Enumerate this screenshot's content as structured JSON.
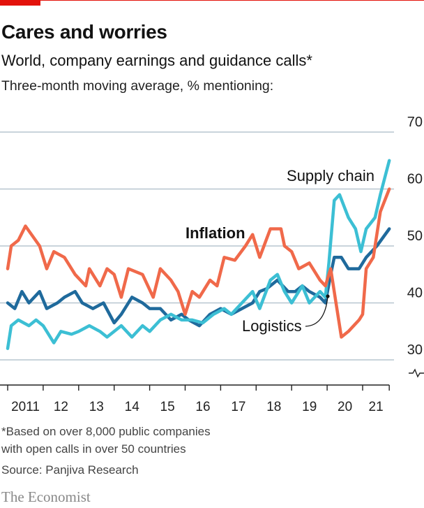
{
  "header": {
    "title": "Cares and worries",
    "subtitle": "World, company earnings and guidance calls*",
    "unit_note": "Three-month moving average, % mentioning:"
  },
  "footer": {
    "note1": "*Based on over 8,000 public companies",
    "note2": "with open calls in over 50 countries",
    "source": "Source: Panjiva Research",
    "logo": "The Economist"
  },
  "chart_data": {
    "type": "line",
    "ylim": [
      30,
      70
    ],
    "yticks": [
      "30",
      "40",
      "50",
      "60",
      "70"
    ],
    "xlim": [
      2011,
      2021.75
    ],
    "xtick_labels": [
      "2011",
      "12",
      "13",
      "14",
      "15",
      "16",
      "17",
      "18",
      "19",
      "20",
      "21"
    ],
    "grid": true,
    "y_axis_broken": true,
    "series": [
      {
        "name": "Inflation",
        "color": "#f0694a",
        "x": [
          2011.0,
          2011.1,
          2011.3,
          2011.5,
          2011.9,
          2012.1,
          2012.3,
          2012.6,
          2012.9,
          2013.2,
          2013.3,
          2013.6,
          2013.8,
          2014.0,
          2014.2,
          2014.4,
          2014.8,
          2015.1,
          2015.3,
          2015.6,
          2015.8,
          2016.0,
          2016.2,
          2016.4,
          2016.7,
          2016.9,
          2017.1,
          2017.4,
          2017.7,
          2017.9,
          2018.1,
          2018.4,
          2018.7,
          2018.8,
          2019.0,
          2019.2,
          2019.5,
          2019.8,
          2019.95,
          2020.1,
          2020.25,
          2020.4,
          2020.6,
          2020.9,
          2021.0,
          2021.1,
          2021.3,
          2021.5,
          2021.75
        ],
        "y": [
          46,
          50,
          51,
          53.5,
          50,
          46,
          49,
          48,
          45,
          43,
          46,
          43,
          46,
          45,
          41,
          46,
          45,
          41,
          46,
          44,
          42,
          38,
          42,
          41,
          44,
          43,
          48,
          47.5,
          50,
          52,
          48,
          53,
          53,
          50,
          49,
          46,
          47,
          44,
          43,
          46,
          40,
          34,
          35,
          37,
          38,
          46,
          48,
          56,
          60
        ]
      },
      {
        "name": "Supply chain",
        "color": "#3cbfd4",
        "x": [
          2011.0,
          2011.1,
          2011.3,
          2011.6,
          2011.8,
          2012.0,
          2012.3,
          2012.5,
          2012.8,
          2013.0,
          2013.3,
          2013.6,
          2013.8,
          2014.2,
          2014.5,
          2014.8,
          2015.0,
          2015.3,
          2015.6,
          2015.9,
          2016.2,
          2016.5,
          2016.8,
          2017.1,
          2017.3,
          2017.6,
          2017.9,
          2018.1,
          2018.4,
          2018.6,
          2018.8,
          2019.0,
          2019.3,
          2019.5,
          2019.8,
          2019.95,
          2020.05,
          2020.2,
          2020.35,
          2020.6,
          2020.8,
          2020.95,
          2021.1,
          2021.35,
          2021.5,
          2021.75
        ],
        "y": [
          32,
          36,
          37,
          36,
          37,
          36,
          33,
          35,
          34.5,
          35,
          36,
          35,
          34,
          36,
          34,
          36,
          35,
          37,
          38,
          37,
          37,
          36.5,
          38,
          39,
          38,
          40,
          42,
          39,
          44,
          45,
          42,
          40,
          43,
          40,
          42,
          41,
          47,
          58,
          59,
          55,
          53,
          49,
          53,
          55,
          59,
          65
        ]
      },
      {
        "name": "Logistics",
        "color": "#1f6a9c",
        "x": [
          2011.0,
          2011.2,
          2011.4,
          2011.6,
          2011.9,
          2012.1,
          2012.4,
          2012.6,
          2012.9,
          2013.1,
          2013.4,
          2013.7,
          2014.0,
          2014.2,
          2014.5,
          2014.8,
          2015.0,
          2015.3,
          2015.6,
          2015.9,
          2016.1,
          2016.4,
          2016.7,
          2017.0,
          2017.3,
          2017.6,
          2017.9,
          2018.1,
          2018.3,
          2018.6,
          2018.9,
          2019.1,
          2019.3,
          2019.5,
          2019.8,
          2019.95,
          2020.1,
          2020.2,
          2020.4,
          2020.6,
          2020.9,
          2021.1,
          2021.4,
          2021.75
        ],
        "y": [
          40,
          39,
          42,
          40,
          42,
          39,
          40,
          41,
          42,
          40,
          39,
          40,
          36.5,
          38,
          41,
          40,
          39,
          39,
          37,
          38,
          37,
          36,
          38,
          39,
          38,
          39,
          40,
          42,
          42.5,
          44,
          42,
          42,
          43,
          42,
          41,
          40,
          45,
          48,
          48,
          46,
          46,
          48,
          50,
          53
        ]
      }
    ]
  }
}
